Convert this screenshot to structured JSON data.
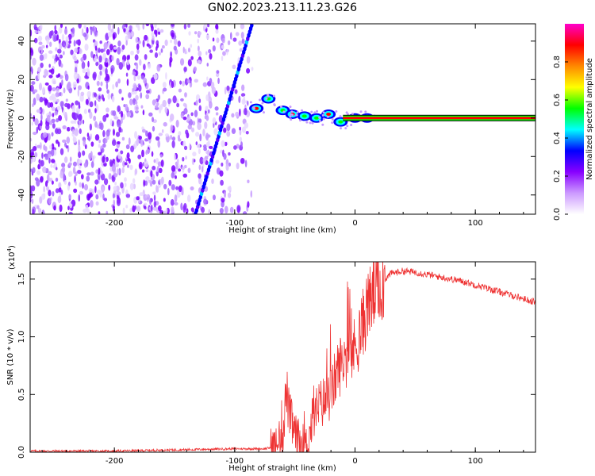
{
  "title": "GN02.2023.213.11.23.G26",
  "chart_data": [
    {
      "type": "heatmap",
      "title": "GN02.2023.213.11.23.G26",
      "xlabel": "Height of straight line (km)",
      "ylabel": "Frequency (Hz)",
      "xlim": [
        -270,
        150
      ],
      "ylim": [
        -50,
        49
      ],
      "xticks": [
        -200,
        -100,
        0,
        100
      ],
      "yticks": [
        -40,
        -20,
        0,
        20,
        40
      ],
      "colorbar": {
        "label": "Normalized spectral amplitude",
        "range": [
          0,
          1
        ],
        "ticks": [
          0.0,
          0.2,
          0.4,
          0.6,
          0.8
        ],
        "colors": [
          "#ffffff",
          "#cc99ff",
          "#8800ff",
          "#0000ff",
          "#00ffff",
          "#00ff00",
          "#ffff00",
          "#ff8800",
          "#ff0000",
          "#ff00cc"
        ]
      },
      "features": {
        "noise_region_x": [
          -270,
          -85
        ],
        "diagonal_trace": {
          "x": [
            -135,
            -85
          ],
          "y": [
            -55,
            50
          ],
          "color": "#0000ff"
        },
        "steady_line": {
          "x": [
            -10,
            150
          ],
          "y": 0,
          "core_color": "#ff0000",
          "edge_color": "#00ff00"
        },
        "transition_blobs": [
          {
            "x": -82,
            "y": 5
          },
          {
            "x": -72,
            "y": 10
          },
          {
            "x": -60,
            "y": 4
          },
          {
            "x": -52,
            "y": 2
          },
          {
            "x": -42,
            "y": 1
          },
          {
            "x": -32,
            "y": 0
          },
          {
            "x": -22,
            "y": 2
          },
          {
            "x": -12,
            "y": -2
          },
          {
            "x": 0,
            "y": 0
          },
          {
            "x": 10,
            "y": 0
          }
        ]
      }
    },
    {
      "type": "line",
      "xlabel": "Height of straight line (km)",
      "ylabel": "SNR (10 * v/v)",
      "y_multiplier": "(x10",
      "y_multiplier_exp": "4",
      "y_multiplier_close": ")",
      "xlim": [
        -270,
        150
      ],
      "ylim": [
        0,
        1.65
      ],
      "xticks": [
        -200,
        -100,
        0,
        100
      ],
      "yticks": [
        0.0,
        0.5,
        1.0,
        1.5
      ],
      "ytick_labels": [
        "0.0",
        "0.5",
        "1.0",
        "1.5"
      ],
      "color": "#ee3333",
      "series": [
        {
          "x": [
            -270,
            -200,
            -100,
            -75,
            -65,
            -60,
            -57,
            -55,
            -50,
            -45,
            -40,
            -35,
            -30,
            -25,
            -20,
            -15,
            -10,
            -5,
            0,
            5,
            10,
            20,
            30,
            40,
            50,
            70,
            90,
            110,
            130,
            150
          ],
          "values": [
            0.01,
            0.01,
            0.03,
            0.03,
            0.05,
            0.15,
            0.55,
            0.35,
            0.15,
            0.08,
            0.05,
            0.3,
            0.4,
            0.45,
            0.5,
            0.7,
            0.8,
            0.85,
            0.9,
            1.05,
            1.25,
            1.45,
            1.55,
            1.57,
            1.56,
            1.52,
            1.48,
            1.42,
            1.36,
            1.3
          ]
        }
      ]
    }
  ]
}
